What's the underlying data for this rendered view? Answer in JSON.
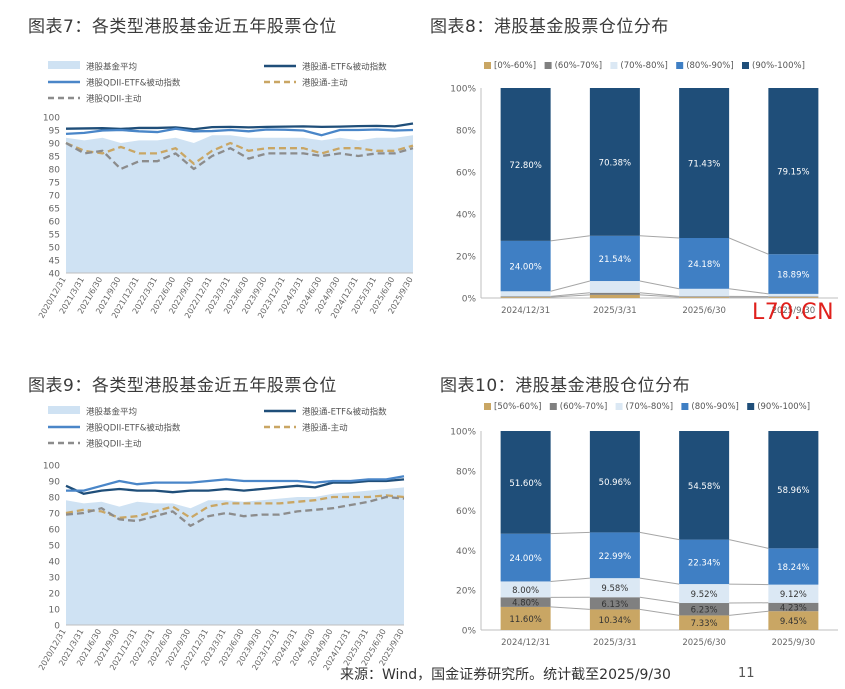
{
  "footer": {
    "source": "来源：Wind，国金证券研究所。统计截至2025/9/30",
    "page": "11"
  },
  "site_mark": "L70.CN",
  "colors": {
    "avg_fill": "#cfe2f3",
    "etf": "#1f4e79",
    "qdii_etf": "#4a86c8",
    "hk_active": "#c9a664",
    "qdii_active": "#8c8c8c",
    "bin0": "#c9a664",
    "bin1": "#808080",
    "bin2": "#dbe8f4",
    "bin3": "#3f7fc4",
    "bin4": "#1f4e79"
  },
  "chart_data": [
    {
      "id": "chart7",
      "type": "line",
      "title": "图表7：各类型港股基金近五年股票仓位",
      "x": [
        "2020/12/31",
        "2021/3/31",
        "2021/6/30",
        "2021/9/30",
        "2021/12/31",
        "2022/3/31",
        "2022/6/30",
        "2022/9/30",
        "2022/12/31",
        "2023/3/31",
        "2023/6/30",
        "2023/9/30",
        "2023/12/31",
        "2024/3/31",
        "2024/6/30",
        "2024/9/30",
        "2024/12/31",
        "2025/3/31",
        "2025/6/30",
        "2025/9/30"
      ],
      "ylim": [
        40,
        100
      ],
      "yticks": [
        40,
        45,
        50,
        55,
        60,
        65,
        70,
        75,
        80,
        85,
        90,
        95,
        100
      ],
      "legend": [
        "港股基金平均",
        "港股通-ETF&被动指数",
        "港股QDII-ETF&被动指数",
        "港股通-主动",
        "港股QDII-主动"
      ],
      "series": [
        {
          "name": "港股基金平均",
          "kind": "area",
          "values": [
            92,
            91,
            92,
            90,
            91,
            91,
            92,
            90,
            93,
            93,
            92,
            92,
            92,
            92,
            91,
            92,
            91,
            92,
            92,
            93
          ]
        },
        {
          "name": "港股通-ETF&被动指数",
          "kind": "line",
          "values": [
            95.5,
            95.6,
            95.7,
            95.4,
            95.8,
            95.8,
            96,
            95.3,
            96.1,
            96.2,
            96,
            96.2,
            96.3,
            96.4,
            96.2,
            96.3,
            96.5,
            96.6,
            96.4,
            97.5
          ]
        },
        {
          "name": "港股QDII-ETF&被动指数",
          "kind": "line",
          "values": [
            93.5,
            93.9,
            94.8,
            95,
            94.5,
            94.2,
            95.5,
            94.5,
            94.6,
            95,
            94.5,
            95.2,
            95.1,
            94.8,
            93,
            95,
            95,
            95.2,
            94.8,
            95
          ]
        },
        {
          "name": "港股通-主动",
          "kind": "dash",
          "values": [
            90,
            87,
            86,
            88.5,
            86,
            86,
            88,
            82,
            87,
            90,
            87,
            88,
            88,
            88,
            86,
            88,
            88,
            87,
            87,
            89
          ]
        },
        {
          "name": "港股QDII-主动",
          "kind": "dash",
          "values": [
            90,
            86,
            87,
            80,
            83,
            83,
            86,
            80,
            85,
            88,
            84,
            86,
            86,
            86,
            85,
            86,
            85,
            86,
            86,
            88
          ]
        }
      ]
    },
    {
      "id": "chart8",
      "type": "bar",
      "title": "图表8：港股基金股票仓位分布",
      "categories": [
        "2024/12/31",
        "2025/3/31",
        "2025/6/30",
        "2025/9/30"
      ],
      "ylim": [
        0,
        100
      ],
      "yticks": [
        "0%",
        "20%",
        "40%",
        "60%",
        "80%",
        "100%"
      ],
      "legend": [
        "[0%-60%]",
        "(60%-70%]",
        "(70%-80%]",
        "(80%-90%]",
        "(90%-100%]"
      ],
      "series": [
        {
          "name": "[0%-60%]",
          "values": [
            0.4,
            1.5,
            0.4,
            0.4
          ]
        },
        {
          "name": "(60%-70%]",
          "values": [
            0.4,
            1.0,
            0.4,
            0.3
          ]
        },
        {
          "name": "(70%-80%]",
          "values": [
            2.4,
            5.58,
            3.59,
            1.26
          ]
        },
        {
          "name": "(80%-90%]",
          "values": [
            24.0,
            21.54,
            24.18,
            18.89
          ]
        },
        {
          "name": "(90%-100%]",
          "values": [
            72.8,
            70.38,
            71.43,
            79.15
          ]
        }
      ],
      "labels": [
        [
          null,
          null,
          null,
          "24.00%",
          "72.80%"
        ],
        [
          null,
          null,
          null,
          "21.54%",
          "70.38%"
        ],
        [
          null,
          null,
          null,
          "24.18%",
          "71.43%"
        ],
        [
          null,
          null,
          null,
          "18.89%",
          "79.15%"
        ]
      ]
    },
    {
      "id": "chart9",
      "type": "line",
      "title": "图表9：各类型港股基金近五年股票仓位",
      "x": [
        "2020/12/31",
        "2021/3/31",
        "2021/6/30",
        "2021/9/30",
        "2021/12/31",
        "2022/3/31",
        "2022/6/30",
        "2022/9/30",
        "2022/12/31",
        "2023/3/31",
        "2023/6/30",
        "2023/9/30",
        "2023/12/31",
        "2024/3/31",
        "2024/6/30",
        "2024/9/30",
        "2024/12/31",
        "2025/3/31",
        "2025/6/30",
        "2025/9/30"
      ],
      "ylim": [
        0,
        100
      ],
      "yticks": [
        0,
        10,
        20,
        30,
        40,
        50,
        60,
        70,
        80,
        90,
        100
      ],
      "legend": [
        "港股基金平均",
        "港股通-ETF&被动指数",
        "港股QDII-ETF&被动指数",
        "港股通-主动",
        "港股QDII-主动"
      ],
      "series": [
        {
          "name": "港股基金平均",
          "kind": "area",
          "values": [
            78,
            76,
            77,
            74,
            77,
            76,
            76,
            73,
            78,
            78,
            77,
            78,
            79,
            80,
            80,
            82,
            83,
            84,
            85,
            86
          ]
        },
        {
          "name": "港股通-ETF&被动指数",
          "kind": "line",
          "values": [
            87,
            82,
            84,
            85,
            84,
            84,
            83,
            84,
            84,
            85,
            84,
            85,
            86,
            87,
            86,
            89,
            89,
            90,
            90,
            91
          ]
        },
        {
          "name": "港股QDII-ETF&被动指数",
          "kind": "line",
          "values": [
            84,
            84,
            87,
            90,
            88,
            89,
            89,
            89,
            90,
            91,
            90,
            90,
            90,
            90,
            89,
            90,
            90,
            91,
            91,
            93
          ]
        },
        {
          "name": "港股通-主动",
          "kind": "dash",
          "values": [
            70,
            72,
            71,
            67,
            68,
            71,
            74,
            67,
            74,
            76,
            76,
            76,
            76,
            77,
            78,
            80,
            80,
            80,
            81,
            80
          ]
        },
        {
          "name": "港股QDII-主动",
          "kind": "dash",
          "values": [
            69,
            70,
            73,
            66,
            65,
            68,
            71,
            62,
            68,
            70,
            68,
            69,
            69,
            71,
            72,
            73,
            75,
            77,
            80,
            79
          ]
        }
      ]
    },
    {
      "id": "chart10",
      "type": "bar",
      "title": "图表10：港股基金港股仓位分布",
      "categories": [
        "2024/12/31",
        "2025/3/31",
        "2025/6/30",
        "2025/9/30"
      ],
      "ylim": [
        0,
        100
      ],
      "yticks": [
        "0%",
        "20%",
        "40%",
        "60%",
        "80%",
        "100%"
      ],
      "legend": [
        "[50%-60%]",
        "(60%-70%]",
        "(70%-80%]",
        "(80%-90%]",
        "(90%-100%]"
      ],
      "series": [
        {
          "name": "[50%-60%]",
          "values": [
            11.6,
            10.34,
            7.33,
            9.45
          ]
        },
        {
          "name": "(60%-70%]",
          "values": [
            4.8,
            6.13,
            6.23,
            4.23
          ]
        },
        {
          "name": "(70%-80%]",
          "values": [
            8.0,
            9.58,
            9.52,
            9.12
          ]
        },
        {
          "name": "(80%-90%]",
          "values": [
            24.0,
            22.99,
            22.34,
            18.24
          ]
        },
        {
          "name": "(90%-100%]",
          "values": [
            51.6,
            50.96,
            54.58,
            58.96
          ]
        }
      ],
      "labels": [
        [
          "11.60%",
          "4.80%",
          "8.00%",
          "24.00%",
          "51.60%"
        ],
        [
          "10.34%",
          "6.13%",
          "9.58%",
          "22.99%",
          "50.96%"
        ],
        [
          "7.33%",
          "6.23%",
          "9.52%",
          "22.34%",
          "54.58%"
        ],
        [
          "9.45%",
          "4.23%",
          "9.12%",
          "18.24%",
          "58.96%"
        ]
      ]
    }
  ]
}
